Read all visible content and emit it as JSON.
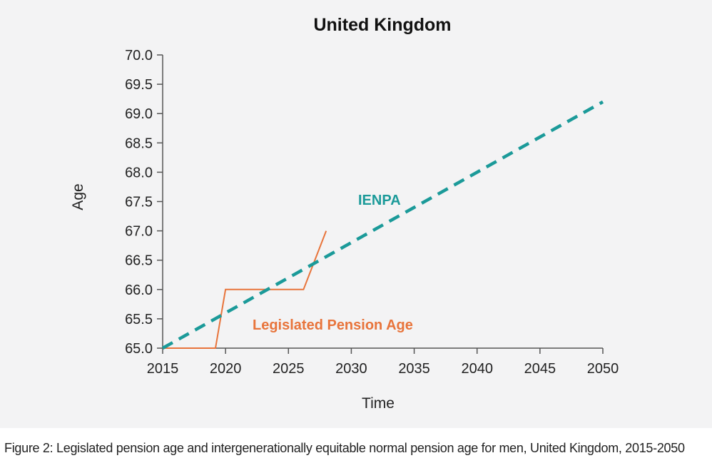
{
  "chart_data": {
    "type": "line",
    "title": "United Kingdom",
    "xlabel": "Time",
    "ylabel": "Age",
    "xlim": [
      2015,
      2050
    ],
    "ylim": [
      65.0,
      70.0
    ],
    "x_ticks": [
      2015,
      2020,
      2025,
      2030,
      2035,
      2040,
      2045,
      2050
    ],
    "y_ticks": [
      65.0,
      65.5,
      66.0,
      66.5,
      67.0,
      67.5,
      68.0,
      68.5,
      69.0,
      69.5,
      70.0
    ],
    "y_tick_labels": [
      "65.0",
      "65.5",
      "66.0",
      "66.5",
      "67.0",
      "67.5",
      "68.0",
      "68.5",
      "69.0",
      "69.5",
      "70.0"
    ],
    "series": [
      {
        "name": "Legislated Pension Age",
        "color": "#e8743b",
        "style": "solid",
        "x": [
          2015,
          2019.2,
          2020,
          2026.2,
          2028
        ],
        "y": [
          65.0,
          65.0,
          66.0,
          66.0,
          67.0
        ]
      },
      {
        "name": "IENPA",
        "color": "#1b9a99",
        "style": "dashed",
        "x": [
          2015,
          2050
        ],
        "y": [
          65.0,
          69.2
        ]
      }
    ]
  },
  "caption": "Figure 2: Legislated pension age and intergenerationally equitable normal pension age for men, United Kingdom, 2015-2050"
}
